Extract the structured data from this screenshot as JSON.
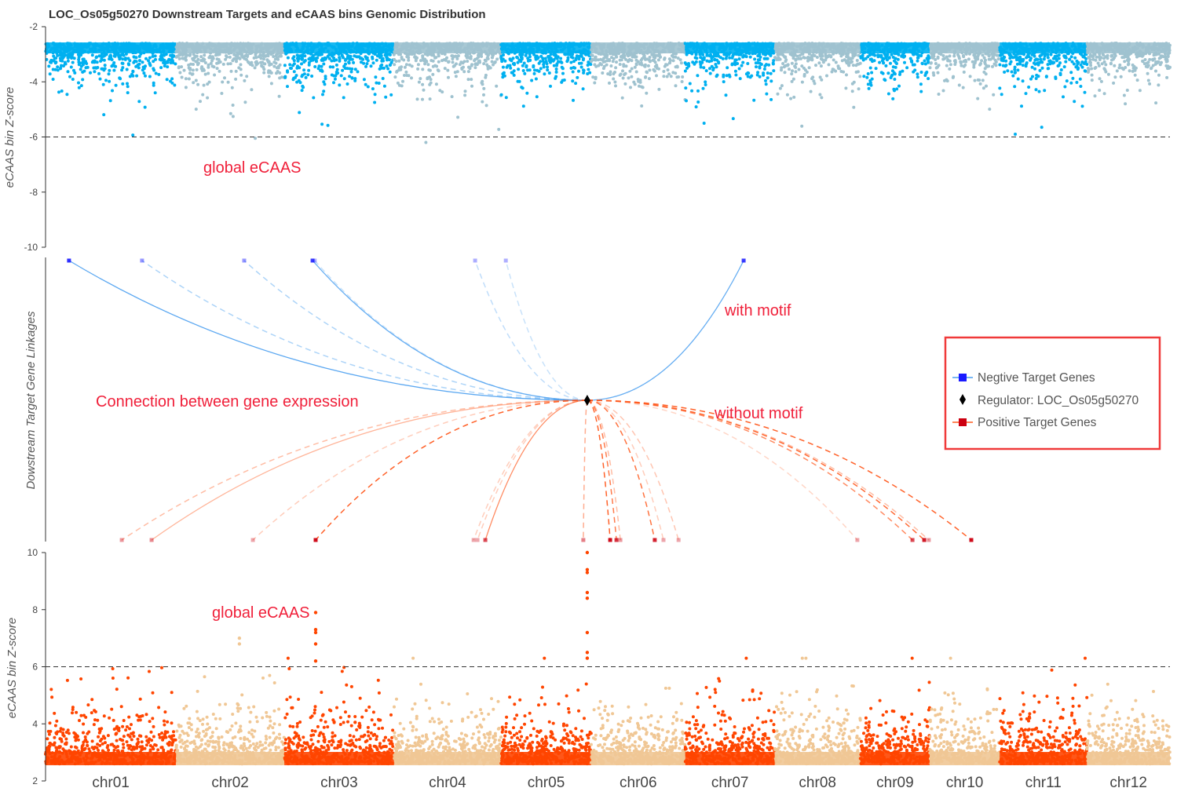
{
  "chart_data": {
    "type": "scatter",
    "title": "LOC_Os05g50270 Downstream Targets and eCAAS bins Genomic Distribution",
    "panels": {
      "top": {
        "ylabel": "eCAAS bin Z-score",
        "ylim": [
          -10,
          -2
        ],
        "yticks": [
          -2,
          -4,
          -6,
          -8,
          -10
        ],
        "threshold": -6,
        "colors": [
          "#00b0f0",
          "#9fc2cf"
        ],
        "annotation": "global eCAAS"
      },
      "middle": {
        "ylabel": "Dowstream Target Gene Linkages"
      },
      "bottom": {
        "ylabel": "eCAAS bin Z-score",
        "ylim": [
          2,
          10
        ],
        "yticks": [
          10,
          8,
          6,
          4,
          2
        ],
        "threshold": 6,
        "colors": [
          "#ff4500",
          "#f0c795"
        ],
        "annotation": "global eCAAS",
        "notable_bins": [
          {
            "chr": "chr05",
            "pos_mb": 28.6,
            "values": [
              10.0,
              9.4,
              9.3,
              8.6,
              8.4,
              7.2,
              6.5,
              6.3
            ]
          },
          {
            "chr": "chr03",
            "pos_mb": 10.4,
            "values": [
              7.9,
              7.3,
              7.2,
              6.8,
              6.2
            ]
          },
          {
            "chr": "chr02",
            "pos_mb": 21.0,
            "values": [
              7.0,
              6.8
            ]
          }
        ]
      }
    },
    "chromosomes": [
      {
        "name": "chr01",
        "length_mb": 43.3
      },
      {
        "name": "chr02",
        "length_mb": 35.9
      },
      {
        "name": "chr03",
        "length_mb": 36.4
      },
      {
        "name": "chr04",
        "length_mb": 35.5
      },
      {
        "name": "chr05",
        "length_mb": 29.9
      },
      {
        "name": "chr06",
        "length_mb": 31.2
      },
      {
        "name": "chr07",
        "length_mb": 29.7
      },
      {
        "name": "chr08",
        "length_mb": 28.4
      },
      {
        "name": "chr09",
        "length_mb": 23.0
      },
      {
        "name": "chr10",
        "length_mb": 23.2
      },
      {
        "name": "chr11",
        "length_mb": 29.0
      },
      {
        "name": "chr12",
        "length_mb": 27.5
      }
    ],
    "regulator": {
      "name": "LOC_Os05g50270",
      "chr": "chr05",
      "pos_mb": 28.6
    },
    "negative_targets": [
      {
        "chr": "chr01",
        "pos_mb": 7.8,
        "motif": true,
        "strength": 0.9
      },
      {
        "chr": "chr01",
        "pos_mb": 32.0,
        "motif": false,
        "strength": 0.45
      },
      {
        "chr": "chr02",
        "pos_mb": 22.6,
        "motif": false,
        "strength": 0.45
      },
      {
        "chr": "chr03",
        "pos_mb": 9.4,
        "motif": true,
        "strength": 0.85
      },
      {
        "chr": "chr03",
        "pos_mb": 10.1,
        "motif": false,
        "strength": 0.3
      },
      {
        "chr": "chr04",
        "pos_mb": 26.9,
        "motif": false,
        "strength": 0.35
      },
      {
        "chr": "chr05",
        "pos_mb": 1.6,
        "motif": false,
        "strength": 0.3
      },
      {
        "chr": "chr07",
        "pos_mb": 19.4,
        "motif": true,
        "strength": 0.85
      }
    ],
    "positive_targets": [
      {
        "chr": "chr01",
        "pos_mb": 25.3,
        "motif": false,
        "strength": 0.4
      },
      {
        "chr": "chr01",
        "pos_mb": 35.2,
        "motif": true,
        "strength": 0.45
      },
      {
        "chr": "chr02",
        "pos_mb": 25.5,
        "motif": false,
        "strength": 0.3
      },
      {
        "chr": "chr03",
        "pos_mb": 10.4,
        "motif": false,
        "strength": 0.95
      },
      {
        "chr": "chr04",
        "pos_mb": 26.4,
        "motif": false,
        "strength": 0.3
      },
      {
        "chr": "chr04",
        "pos_mb": 27.7,
        "motif": false,
        "strength": 0.3
      },
      {
        "chr": "chr04",
        "pos_mb": 30.3,
        "motif": true,
        "strength": 0.7
      },
      {
        "chr": "chr05",
        "pos_mb": 27.3,
        "motif": false,
        "strength": 0.5
      },
      {
        "chr": "chr06",
        "pos_mb": 6.3,
        "motif": false,
        "strength": 0.95
      },
      {
        "chr": "chr06",
        "pos_mb": 8.4,
        "motif": false,
        "strength": 0.8
      },
      {
        "chr": "chr06",
        "pos_mb": 9.7,
        "motif": false,
        "strength": 0.4
      },
      {
        "chr": "chr06",
        "pos_mb": 21.1,
        "motif": false,
        "strength": 0.85
      },
      {
        "chr": "chr06",
        "pos_mb": 24.0,
        "motif": false,
        "strength": 0.3
      },
      {
        "chr": "chr06",
        "pos_mb": 29.0,
        "motif": false,
        "strength": 0.35
      },
      {
        "chr": "chr08",
        "pos_mb": 27.4,
        "motif": false,
        "strength": 0.25
      },
      {
        "chr": "chr09",
        "pos_mb": 17.3,
        "motif": false,
        "strength": 0.7
      },
      {
        "chr": "chr09",
        "pos_mb": 21.2,
        "motif": false,
        "strength": 0.9
      },
      {
        "chr": "chr09",
        "pos_mb": 22.7,
        "motif": false,
        "strength": 0.4
      },
      {
        "chr": "chr10",
        "pos_mb": 13.8,
        "motif": false,
        "strength": 0.95
      }
    ],
    "line_colors": {
      "negative": "#4a9ff0",
      "positive": "#ff5a1f",
      "negative_marker": "#1a1aff",
      "positive_marker": "#cc0010"
    },
    "legend": {
      "position": "right",
      "items": [
        "Negtive Target Genes",
        "Regulator: LOC_Os05g50270",
        "Positive Target Genes"
      ],
      "border_color": "#f03a3a"
    },
    "annotations": {
      "with_motif": "with motif",
      "without_motif": "without motif",
      "connection": "Connection between gene expression"
    }
  }
}
